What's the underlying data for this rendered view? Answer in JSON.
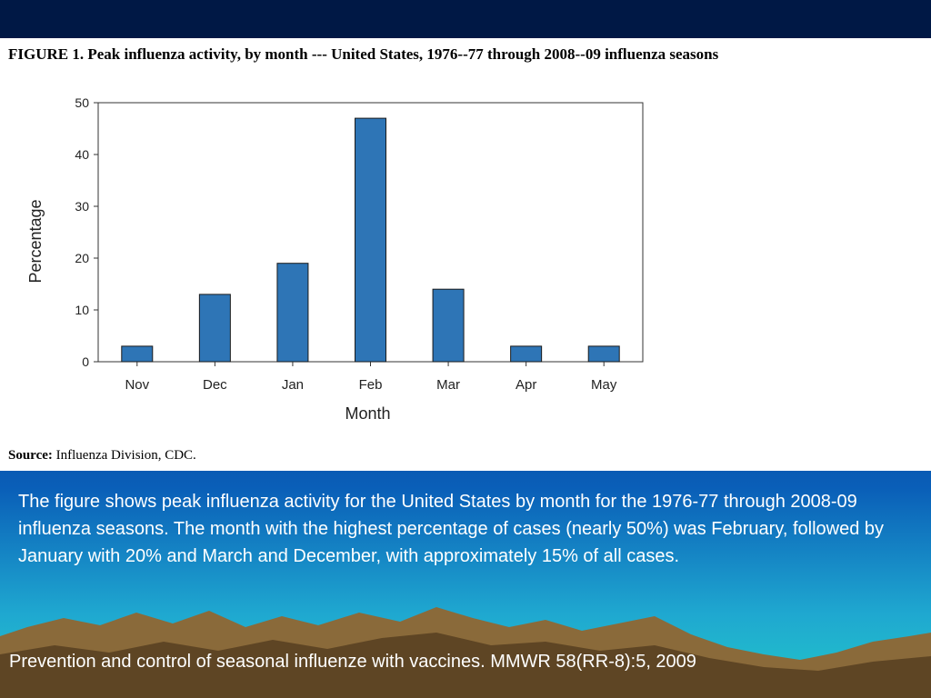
{
  "slide": {
    "caption": "The figure shows peak influenza activity for the United States by month for the 1976-77 through 2008-09 influenza seasons. The month with the highest percentage of cases (nearly 50%) was February, followed by January with 20% and March and December, with approximately 15% of all cases.",
    "footer_reference": "Prevention and control of seasonal influenze with vaccines. MMWR 58(RR-8):5, 2009",
    "colors": {
      "background_top": "#00154a",
      "background_bottom": "#22c7c9",
      "bar_fill": "#2e75b6",
      "mountain": "#8a6a3a"
    }
  },
  "figure": {
    "title": "FIGURE 1. Peak influenza activity, by month --- United States, 1976--77 through 2008--09 influenza seasons",
    "source_label": "Source:",
    "source_text": " Influenza Division, CDC."
  },
  "chart_data": {
    "type": "bar",
    "categories": [
      "Nov",
      "Dec",
      "Jan",
      "Feb",
      "Mar",
      "Apr",
      "May"
    ],
    "values": [
      3,
      13,
      19,
      47,
      14,
      3,
      3
    ],
    "xlabel": "Month",
    "ylabel": "Percentage",
    "ylim": [
      0,
      50
    ],
    "yticks": [
      0,
      10,
      20,
      30,
      40,
      50
    ],
    "grid": false,
    "legend": "none"
  }
}
